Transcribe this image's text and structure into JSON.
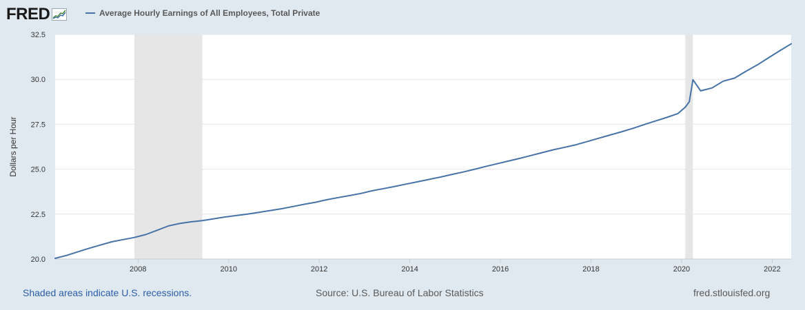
{
  "header": {
    "logo_text": "FRED",
    "legend_label": "Average Hourly Earnings of All Employees, Total Private"
  },
  "footer": {
    "recession_note": "Shaded areas indicate U.S. recessions.",
    "source": "Source: U.S. Bureau of Labor Statistics",
    "site": "fred.stlouisfed.org"
  },
  "colors": {
    "series": "#4572a7",
    "recession": "#e6e6e6",
    "background": "#e1e9f0",
    "plot": "#ffffff",
    "grid": "#e6e6e6"
  },
  "chart_data": {
    "type": "line",
    "title": "Average Hourly Earnings of All Employees, Total Private",
    "xlabel": "",
    "ylabel": "Dollars per Hour",
    "xlim": [
      2006.17,
      2022.42
    ],
    "ylim": [
      20.0,
      32.5
    ],
    "grid": true,
    "yticks": [
      "20.0",
      "22.5",
      "25.0",
      "27.5",
      "30.0",
      "32.5"
    ],
    "xticks": [
      "2008",
      "2010",
      "2012",
      "2014",
      "2016",
      "2018",
      "2020",
      "2022"
    ],
    "recessions": [
      [
        2007.92,
        2009.42
      ],
      [
        2020.08,
        2020.25
      ]
    ],
    "series": [
      {
        "name": "Average Hourly Earnings of All Employees, Total Private",
        "x": [
          2006.17,
          2006.42,
          2006.67,
          2006.92,
          2007.17,
          2007.42,
          2007.67,
          2007.92,
          2008.17,
          2008.42,
          2008.67,
          2008.92,
          2009.17,
          2009.42,
          2009.67,
          2009.92,
          2010.17,
          2010.42,
          2010.67,
          2010.92,
          2011.17,
          2011.42,
          2011.67,
          2011.92,
          2012.17,
          2012.42,
          2012.67,
          2012.92,
          2013.17,
          2013.42,
          2013.67,
          2013.92,
          2014.17,
          2014.42,
          2014.67,
          2014.92,
          2015.17,
          2015.42,
          2015.67,
          2015.92,
          2016.17,
          2016.42,
          2016.67,
          2016.92,
          2017.17,
          2017.42,
          2017.67,
          2017.92,
          2018.17,
          2018.42,
          2018.67,
          2018.92,
          2019.17,
          2019.42,
          2019.67,
          2019.92,
          2020.08,
          2020.17,
          2020.25,
          2020.42,
          2020.67,
          2020.92,
          2021.17,
          2021.42,
          2021.67,
          2021.92,
          2022.17,
          2022.42
        ],
        "values": [
          20.04,
          20.2,
          20.4,
          20.6,
          20.78,
          20.96,
          21.08,
          21.2,
          21.36,
          21.6,
          21.84,
          21.98,
          22.07,
          22.14,
          22.24,
          22.34,
          22.42,
          22.5,
          22.6,
          22.7,
          22.8,
          22.92,
          23.05,
          23.16,
          23.3,
          23.42,
          23.53,
          23.65,
          23.8,
          23.92,
          24.04,
          24.17,
          24.3,
          24.43,
          24.56,
          24.7,
          24.84,
          24.99,
          25.15,
          25.3,
          25.45,
          25.6,
          25.76,
          25.92,
          26.08,
          26.22,
          26.36,
          26.54,
          26.72,
          26.9,
          27.08,
          27.27,
          27.48,
          27.68,
          27.88,
          28.1,
          28.45,
          28.75,
          29.98,
          29.36,
          29.52,
          29.9,
          30.07,
          30.45,
          30.8,
          31.2,
          31.6,
          31.98
        ]
      }
    ]
  }
}
